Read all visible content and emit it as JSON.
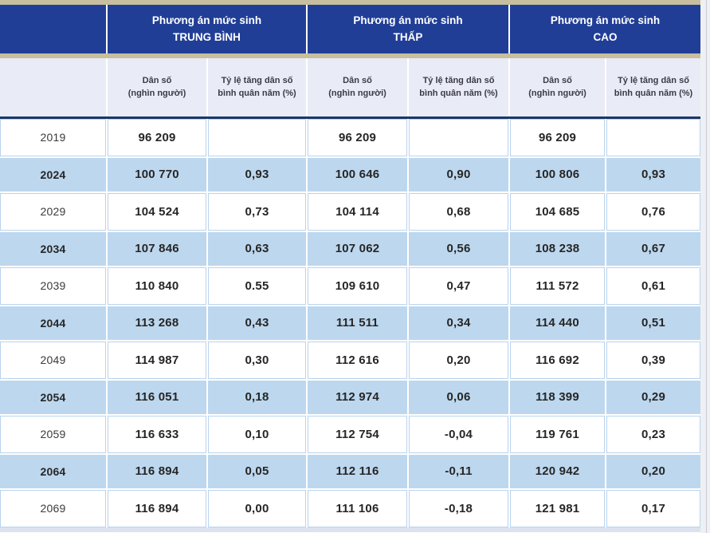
{
  "colors": {
    "header_blue": "#213E97",
    "tan_strip": "#C7BF9E",
    "subheader_bg": "#E9EBF6",
    "stripe_blue": "#BDD7EE",
    "navy_line": "#1B3864"
  },
  "header": {
    "groups": [
      {
        "label": "Phương án mức sinh\nTRUNG BÌNH"
      },
      {
        "label": "Phương án mức sinh\nTHẤP"
      },
      {
        "label": "Phương án mức sinh\nCAO"
      }
    ],
    "sub_population": "Dân số\n(nghìn người)",
    "sub_growth": "Tỷ lệ tăng dân số\nbình quân năm (%)"
  },
  "chart_data": {
    "type": "table",
    "column_groups": [
      "Phương án mức sinh TRUNG BÌNH",
      "Phương án mức sinh THẤP",
      "Phương án mức sinh CAO"
    ],
    "sub_columns": [
      "Dân số (nghìn người)",
      "Tỷ lệ tăng dân số bình quân năm (%)"
    ],
    "rows": [
      {
        "year": "2019",
        "striped": false,
        "values": [
          "96 209",
          "",
          "96 209",
          "",
          "96 209",
          ""
        ]
      },
      {
        "year": "2024",
        "striped": true,
        "values": [
          "100 770",
          "0,93",
          "100 646",
          "0,90",
          "100 806",
          "0,93"
        ]
      },
      {
        "year": "2029",
        "striped": false,
        "values": [
          "104 524",
          "0,73",
          "104 114",
          "0,68",
          "104 685",
          "0,76"
        ]
      },
      {
        "year": "2034",
        "striped": true,
        "values": [
          "107 846",
          "0,63",
          "107 062",
          "0,56",
          "108 238",
          "0,67"
        ]
      },
      {
        "year": "2039",
        "striped": false,
        "values": [
          "110 840",
          "0.55",
          "109 610",
          "0,47",
          "111 572",
          "0,61"
        ]
      },
      {
        "year": "2044",
        "striped": true,
        "values": [
          "113 268",
          "0,43",
          "111 511",
          "0,34",
          "114 440",
          "0,51"
        ]
      },
      {
        "year": "2049",
        "striped": false,
        "values": [
          "114 987",
          "0,30",
          "112 616",
          "0,20",
          "116 692",
          "0,39"
        ]
      },
      {
        "year": "2054",
        "striped": true,
        "values": [
          "116 051",
          "0,18",
          "112 974",
          "0,06",
          "118 399",
          "0,29"
        ]
      },
      {
        "year": "2059",
        "striped": false,
        "values": [
          "116 633",
          "0,10",
          "112 754",
          "-0,04",
          "119 761",
          "0,23"
        ]
      },
      {
        "year": "2064",
        "striped": true,
        "values": [
          "116 894",
          "0,05",
          "112 116",
          "-0,11",
          "120 942",
          "0,20"
        ]
      },
      {
        "year": "2069",
        "striped": false,
        "values": [
          "116 894",
          "0,00",
          "111 106",
          "-0,18",
          "121 981",
          "0,17"
        ]
      }
    ]
  }
}
